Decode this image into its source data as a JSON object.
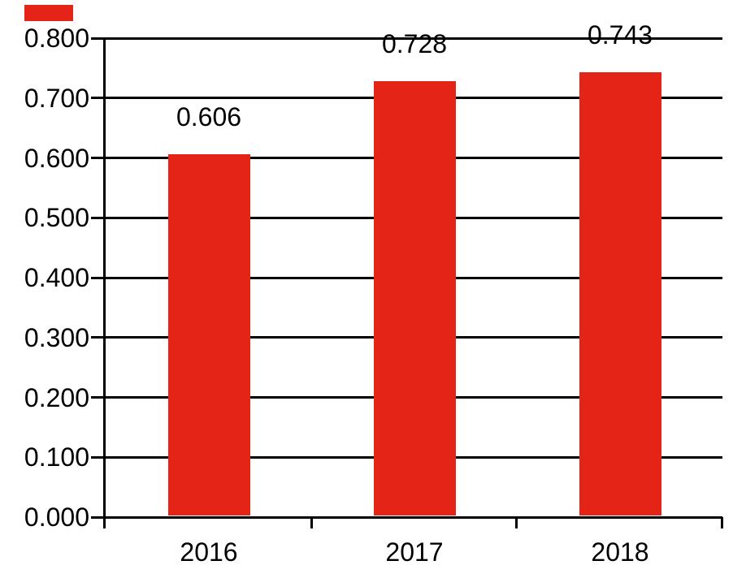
{
  "chart_data": {
    "type": "bar",
    "title": "",
    "categories": [
      "2016",
      "2017",
      "2018"
    ],
    "values": [
      0.606,
      0.728,
      0.743
    ],
    "data_labels": [
      "0.606",
      "0.728",
      "0.743"
    ],
    "xlabel": "",
    "ylabel": "",
    "ylim": [
      0.0,
      0.8
    ],
    "y_tick_step": 0.1,
    "y_tick_labels": [
      "0.000",
      "0.100",
      "0.200",
      "0.300",
      "0.400",
      "0.500",
      "0.600",
      "0.700",
      "0.800"
    ],
    "grid": "horizontal",
    "legend_position": "none",
    "bar_color": "#E32417",
    "axis_color": "#000000",
    "text_color": "#000000",
    "background_color": "#FFFFFF"
  },
  "stray_marker": {
    "color": "#E32417"
  }
}
